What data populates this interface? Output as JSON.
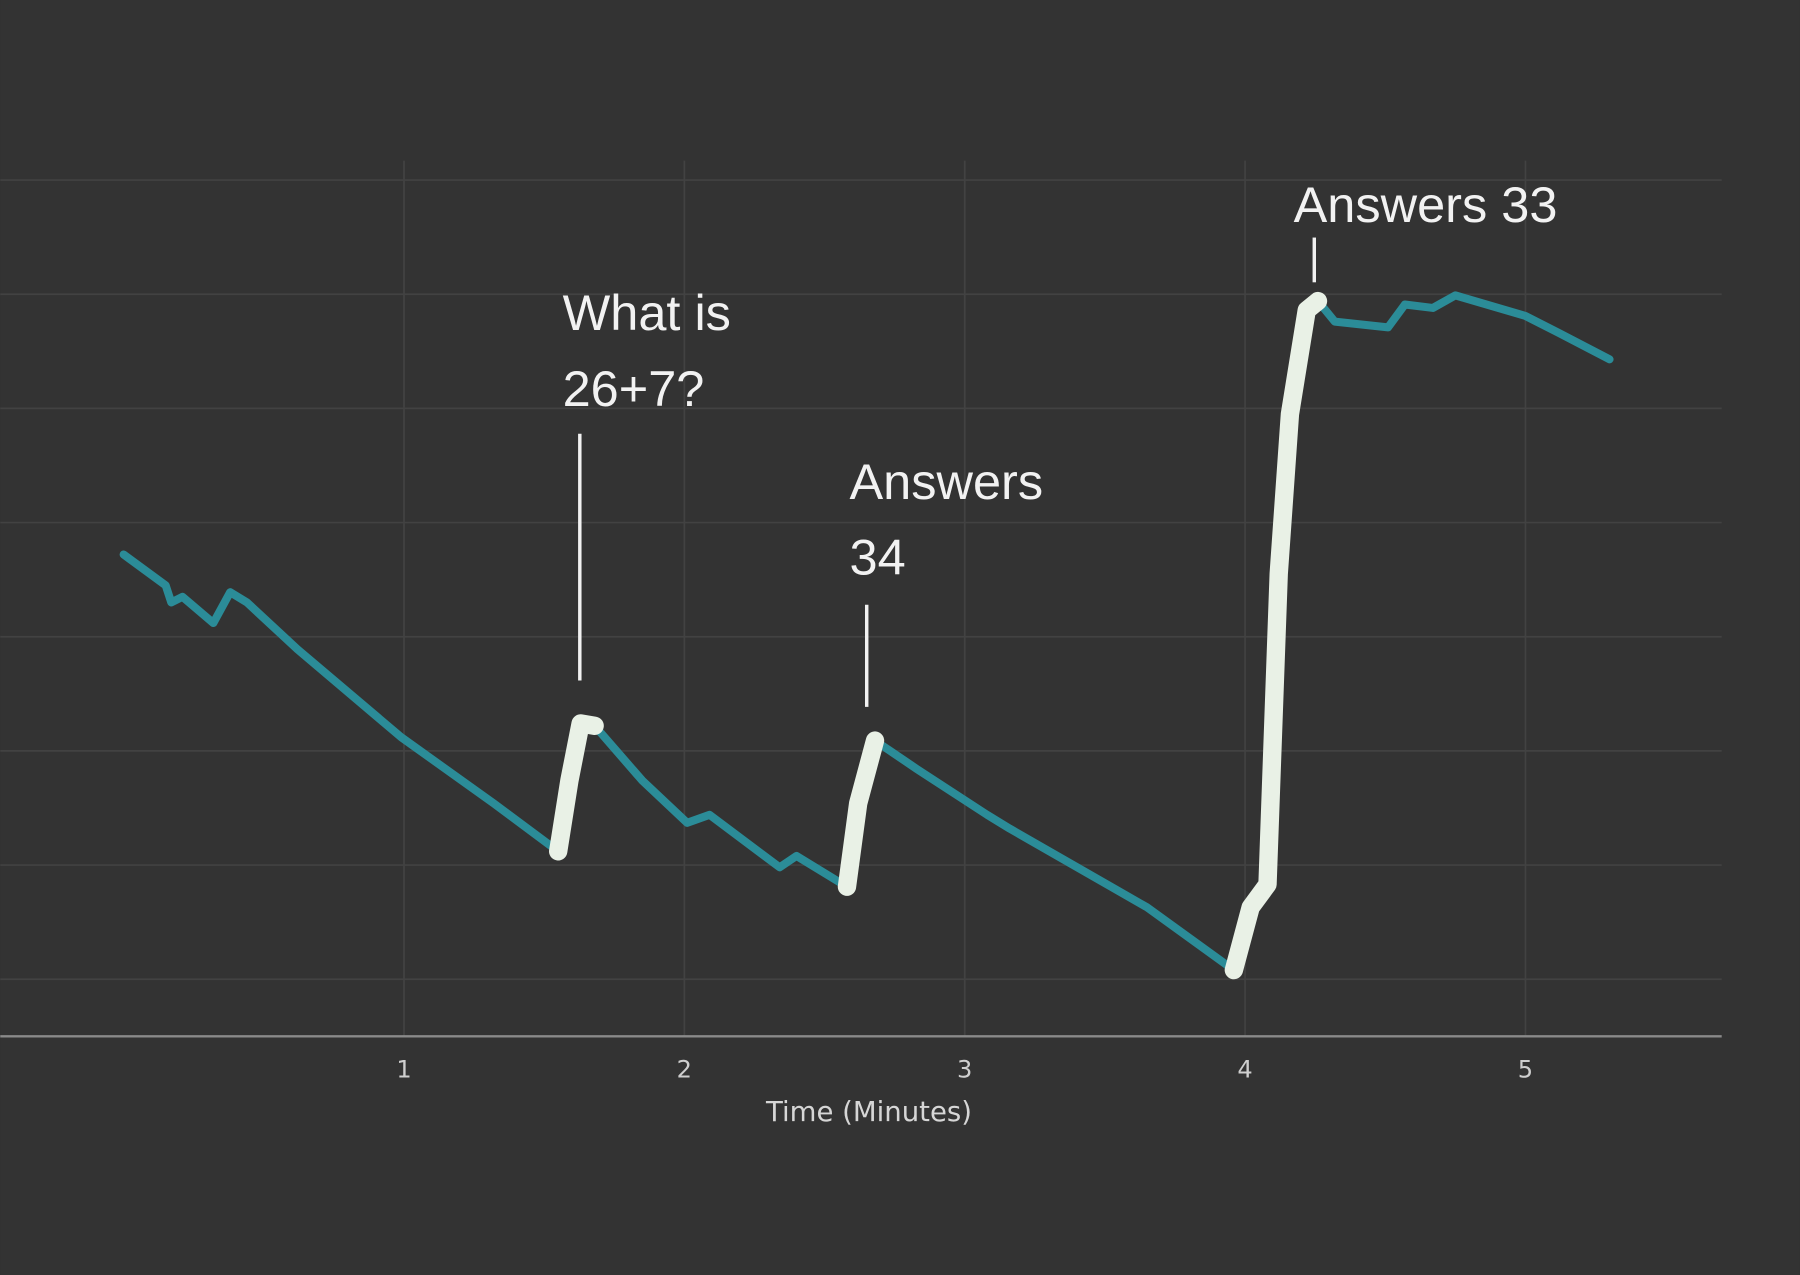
{
  "chart_data": {
    "type": "line",
    "x_label": "Time (Minutes)",
    "x": [
      0,
      0.15,
      0.17,
      0.21,
      0.32,
      0.38,
      0.44,
      0.62,
      0.99,
      1.32,
      1.55,
      1.59,
      1.63,
      1.68,
      1.85,
      2.01,
      2.09,
      2.34,
      2.4,
      2.58,
      2.62,
      2.68,
      2.83,
      3.08,
      3.16,
      3.65,
      3.96,
      4.02,
      4.08,
      4.12,
      4.16,
      4.22,
      4.26,
      4.32,
      4.51,
      4.57,
      4.67,
      4.75,
      5.0,
      5.12,
      5.3
    ],
    "series": [
      {
        "color": "#2b8c98",
        "values": [
          4.72,
          4.45,
          4.3,
          4.35,
          4.12,
          4.39,
          4.3,
          3.89,
          3.12,
          2.54,
          2.12,
          2.74,
          3.24,
          3.22,
          2.74,
          2.37,
          2.44,
          1.98,
          2.08,
          1.81,
          2.54,
          3.09,
          2.84,
          2.44,
          2.32,
          1.63,
          1.08,
          1.63,
          1.83,
          4.55,
          5.95,
          6.86,
          6.94,
          6.76,
          6.71,
          6.91,
          6.88,
          6.99,
          6.81,
          6.66,
          6.43
        ]
      },
      {
        "color": "#e9f1e6",
        "values": [
          null,
          null,
          null,
          null,
          null,
          null,
          null,
          null,
          null,
          null,
          2.12,
          2.74,
          3.24,
          3.22,
          null,
          null,
          null,
          null,
          null,
          1.81,
          2.54,
          3.09,
          null,
          null,
          null,
          null,
          1.08,
          1.63,
          1.83,
          4.55,
          5.95,
          6.86,
          6.94,
          null,
          null,
          null,
          null,
          null,
          null,
          null,
          null
        ]
      }
    ],
    "xlim": [
      -0.44,
      5.7
    ],
    "xticks": [
      1,
      2,
      3,
      4,
      5
    ],
    "ylim": [
      0.5,
      8.17
    ],
    "yticks": [
      1,
      2,
      3,
      4,
      5,
      6,
      7,
      8
    ],
    "grid": true,
    "annotations": [
      {
        "text": [
          "What is",
          "26+7?"
        ]
      },
      {
        "text": [
          "Answers",
          "34"
        ]
      },
      {
        "text": [
          "Answers 33"
        ]
      }
    ]
  }
}
